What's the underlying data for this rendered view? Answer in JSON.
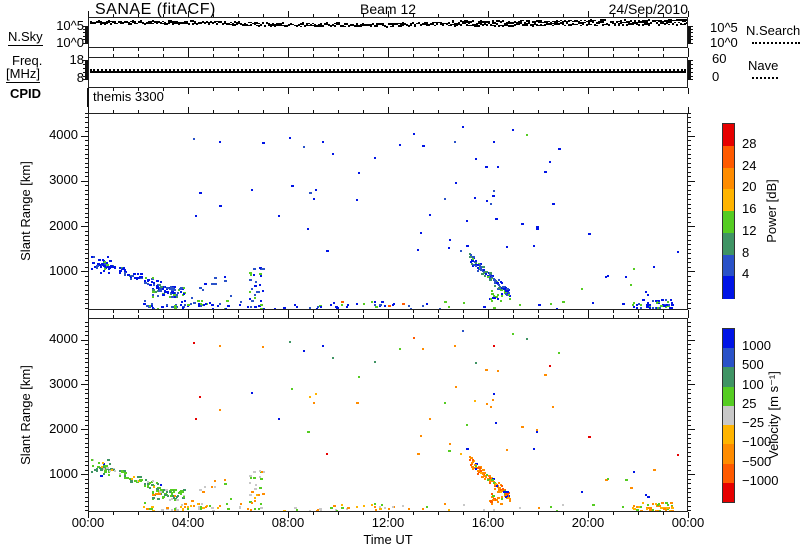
{
  "header": {
    "title": "SANAE (fitACF)",
    "beam": "Beam 12",
    "date": "24/Sep/2010"
  },
  "noise_axis": {
    "left_label": "N.Sky",
    "left_top_tick": "10^5",
    "left_bottom_tick": "10^0",
    "right_top_tick": "10^5",
    "right_bottom_tick": "10^0",
    "right_label": "N.Search"
  },
  "freq_axis": {
    "left_label_line1": "Freq.",
    "left_label_line2": "[MHz]",
    "left_top_tick": "18",
    "left_bottom_tick": "8",
    "right_top_tick": "60",
    "right_bottom_tick": "0",
    "right_label": "Nave"
  },
  "cpid": {
    "label": "CPID",
    "value": "themis 3300"
  },
  "time_axis": {
    "label": "Time UT",
    "tick_labels": [
      "00:00",
      "04:00",
      "08:00",
      "12:00",
      "16:00",
      "20:00",
      "00:00"
    ],
    "tick_hours": [
      0,
      4,
      8,
      12,
      16,
      20,
      24
    ]
  },
  "range_axis": {
    "label": "Slant Range [km]",
    "tick_labels": [
      "1000",
      "2000",
      "3000",
      "4000"
    ],
    "tick_values": [
      1000,
      2000,
      3000,
      4000
    ]
  },
  "power_colorbar": {
    "label": "Power [dB]",
    "ticks": [
      "4",
      "8",
      "12",
      "16",
      "20",
      "24",
      "28"
    ],
    "segment_colors_bottom_to_top": [
      "#0014e6",
      "#2a52c8",
      "#3f9464",
      "#55cc22",
      "#ffb400",
      "#ff8c00",
      "#ff5a00",
      "#e60000"
    ]
  },
  "velocity_colorbar": {
    "label": "Velocity [m s⁻¹]",
    "ticks": [
      "1000",
      "500",
      "100",
      "25",
      "−25",
      "−100",
      "−500",
      "−1000"
    ],
    "segment_colors_top_to_bottom": [
      "#0014e6",
      "#2a52c8",
      "#3f9464",
      "#55cc22",
      "#c8c8c8",
      "#ffb400",
      "#ff8c00",
      "#ff5a00",
      "#e60000"
    ]
  },
  "chart_data": {
    "type": "scatter",
    "title": "SANAE (fitACF) Beam 12 24/Sep/2010",
    "x_label": "Time UT",
    "x_hours_range": [
      0,
      24
    ],
    "panels": {
      "noise": {
        "quantities": [
          "N.Sky (solid underline legend)",
          "N.Search (dotted legend)"
        ],
        "scale": "log",
        "tick_values": [
          "10^5",
          "10^0"
        ],
        "trace_base_frac": [
          [
            0,
            0.12
          ],
          [
            5,
            0.13
          ],
          [
            7,
            0.185
          ],
          [
            12,
            0.205
          ],
          [
            14,
            0.165
          ],
          [
            17,
            0.145
          ],
          [
            20,
            0.125
          ],
          [
            24,
            0.115
          ]
        ],
        "jitter_frac": 0.055
      },
      "freq": {
        "quantities": [
          "Freq [MHz] (solid)",
          "Nave (dotted)"
        ],
        "freq_range_mhz": [
          8,
          18
        ],
        "freq_value_mhz": 12.4,
        "nave_range": [
          0,
          60
        ],
        "nave_value": 50,
        "line_frac": 0.42,
        "nave_line_frac": 0.34
      },
      "power": {
        "ylabel": "Slant Range [km]",
        "units": "dB",
        "range_km": [
          160,
          4510
        ],
        "color_bins": [
          4,
          8,
          12,
          16,
          20,
          24,
          28
        ]
      },
      "velocity": {
        "ylabel": "Slant Range [km]",
        "units": "m s-1",
        "range_km": [
          175,
          4490
        ],
        "color_bins": [
          1000,
          500,
          100,
          25,
          -25,
          -100,
          -500,
          -1000
        ]
      }
    },
    "palette": {
      "blue": "#0014e6",
      "royal": "#2a52c8",
      "seagreen": "#3f9464",
      "green": "#55cc22",
      "grey": "#c8c8c8",
      "yellow": "#ffb400",
      "orange": "#ff8c00",
      "orangered": "#ff5a00",
      "red": "#e60000"
    },
    "echo_clusters": [
      {
        "name": "early-high-band",
        "t": [
          0.05,
          0.8
        ],
        "shape": "blob",
        "r": [
          1020,
          1380
        ],
        "n": 20,
        "power_colors": {
          "blue": 0.7,
          "royal": 0.3
        },
        "velocity_colors": {
          "seagreen": 0.45,
          "green": 0.3,
          "grey": 0.15,
          "blue": 0.1
        }
      },
      {
        "name": "descending-band-00-03",
        "t": [
          0.4,
          3.4
        ],
        "shape": "band",
        "r_start": 1250,
        "r_end": 620,
        "r_jitter": 110,
        "n": 95,
        "power_colors": {
          "blue": 0.55,
          "royal": 0.3,
          "seagreen": 0.1,
          "green": 0.05
        },
        "velocity_colors": {
          "green": 0.45,
          "seagreen": 0.3,
          "grey": 0.1,
          "yellow": 0.08,
          "blue": 0.07
        }
      },
      {
        "name": "blob-0300",
        "t": [
          2.5,
          3.8
        ],
        "shape": "blob",
        "r": [
          480,
          720
        ],
        "n": 50,
        "power_colors": {
          "royal": 0.4,
          "blue": 0.25,
          "green": 0.25,
          "seagreen": 0.1
        },
        "velocity_colors": {
          "green": 0.55,
          "seagreen": 0.2,
          "orange": 0.12,
          "grey": 0.13
        }
      },
      {
        "name": "near-range-band-early",
        "t": [
          2.0,
          5.6
        ],
        "shape": "blob",
        "r": [
          185,
          420
        ],
        "n": 55,
        "power_colors": {
          "blue": 0.5,
          "royal": 0.25,
          "green": 0.25
        },
        "velocity_colors": {
          "orange": 0.3,
          "yellow": 0.25,
          "grey": 0.25,
          "green": 0.2
        }
      },
      {
        "name": "near-range-sparse-mid",
        "t": [
          5.6,
          14.5
        ],
        "shape": "blob",
        "r": [
          180,
          400
        ],
        "n": 55,
        "power_colors": {
          "blue": 0.5,
          "royal": 0.25,
          "green": 0.15,
          "yellow": 0.05,
          "orangered": 0.05
        },
        "velocity_colors": {
          "grey": 0.35,
          "yellow": 0.2,
          "orange": 0.2,
          "green": 0.25
        }
      },
      {
        "name": "mid-low-sparse",
        "t": [
          4.0,
          5.8
        ],
        "shape": "blob",
        "r": [
          450,
          950
        ],
        "n": 10,
        "power_colors": {
          "blue": 0.6,
          "royal": 0.4
        },
        "velocity_colors": {
          "green": 0.4,
          "grey": 0.3,
          "orange": 0.3
        }
      },
      {
        "name": "streak-0630",
        "t": [
          6.3,
          6.95
        ],
        "shape": "blob",
        "r": [
          380,
          1160
        ],
        "n": 24,
        "power_colors": {
          "blue": 0.5,
          "royal": 0.3,
          "green": 0.2
        },
        "velocity_colors": {
          "grey": 0.3,
          "green": 0.3,
          "yellow": 0.2,
          "orange": 0.2
        }
      },
      {
        "name": "sparse-high-left",
        "t": [
          3.8,
          12.5
        ],
        "shape": "blob",
        "r": [
          1500,
          4150
        ],
        "n": 14,
        "power_colors": {
          "blue": 0.8,
          "royal": 0.1,
          "green": 0.1
        },
        "velocity_colors": {
          "orange": 0.3,
          "blue": 0.2,
          "green": 0.2,
          "red": 0.15,
          "seagreen": 0.15
        }
      },
      {
        "name": "sparse-high-right",
        "t": [
          13.0,
          18.8
        ],
        "shape": "blob",
        "r": [
          1500,
          4300
        ],
        "n": 30,
        "power_colors": {
          "blue": 0.75,
          "royal": 0.15,
          "green": 0.1
        },
        "velocity_colors": {
          "orange": 0.4,
          "blue": 0.18,
          "green": 0.18,
          "seagreen": 0.09,
          "red": 0.08,
          "yellow": 0.07
        }
      },
      {
        "name": "descending-cluster-1530",
        "t": [
          15.2,
          16.8
        ],
        "shape": "band",
        "r_start": 1350,
        "r_end": 520,
        "r_jitter": 130,
        "n": 115,
        "power_colors": {
          "royal": 0.4,
          "blue": 0.3,
          "seagreen": 0.15,
          "green": 0.15
        },
        "velocity_colors": {
          "orange": 0.5,
          "orangered": 0.22,
          "yellow": 0.1,
          "green": 0.1,
          "blue": 0.08
        }
      },
      {
        "name": "cluster-16-low",
        "t": [
          16.0,
          16.5
        ],
        "shape": "blob",
        "r": [
          380,
          650
        ],
        "n": 16,
        "power_colors": {
          "blue": 0.55,
          "green": 0.45
        },
        "velocity_colors": {
          "orange": 0.55,
          "orangered": 0.3,
          "green": 0.15
        }
      },
      {
        "name": "near-range-sparse-late",
        "t": [
          14.5,
          21.5
        ],
        "shape": "blob",
        "r": [
          180,
          380
        ],
        "n": 14,
        "power_colors": {
          "blue": 0.6,
          "green": 0.4
        },
        "velocity_colors": {
          "green": 0.35,
          "grey": 0.3,
          "orange": 0.35
        }
      },
      {
        "name": "near-range-strip-2200",
        "t": [
          21.7,
          23.3
        ],
        "shape": "blob",
        "r": [
          240,
          430
        ],
        "n": 45,
        "power_colors": {
          "blue": 0.5,
          "royal": 0.3,
          "green": 0.2
        },
        "velocity_colors": {
          "orange": 0.55,
          "yellow": 0.3,
          "green": 0.15
        }
      },
      {
        "name": "sparse-right-low",
        "t": [
          18.8,
          23.8
        ],
        "shape": "blob",
        "r": [
          430,
          1250
        ],
        "n": 9,
        "power_colors": {
          "blue": 0.85,
          "green": 0.15
        },
        "velocity_colors": {
          "orange": 0.4,
          "green": 0.3,
          "blue": 0.3
        }
      }
    ],
    "echo_singles": [
      {
        "t": 4.16,
        "r": 3990,
        "p": "royal",
        "v": "red"
      },
      {
        "t": 8.56,
        "r": 3800,
        "p": "royal",
        "v": "blue"
      },
      {
        "t": 9.7,
        "r": 3650,
        "p": "blue",
        "v": "seagreen"
      },
      {
        "t": 8.8,
        "r": 2780,
        "p": "royal",
        "v": "yellow"
      },
      {
        "t": 8.95,
        "r": 2650,
        "p": "blue",
        "v": "orange"
      },
      {
        "t": 9.05,
        "r": 2850,
        "p": "blue",
        "v": "yellow"
      },
      {
        "t": 5.2,
        "r": 2500,
        "p": "blue",
        "v": "orange"
      },
      {
        "t": 13.6,
        "r": 2300,
        "p": "blue",
        "v": "orange"
      },
      {
        "t": 6.9,
        "r": 3900,
        "p": "blue",
        "v": "orange"
      },
      {
        "t": 12.96,
        "r": 4090,
        "p": "blue",
        "v": "orangered"
      },
      {
        "t": 18.76,
        "r": 3760,
        "p": "blue",
        "v": "green"
      },
      {
        "t": 23.5,
        "r": 1480,
        "p": "blue",
        "v": "red"
      },
      {
        "t": 19.96,
        "r": 1890,
        "p": "blue",
        "v": "red"
      },
      {
        "t": 14.9,
        "r": 4250,
        "p": "blue",
        "v": "royal"
      },
      {
        "t": 16.9,
        "r": 4180,
        "p": "blue",
        "v": "green"
      }
    ]
  }
}
